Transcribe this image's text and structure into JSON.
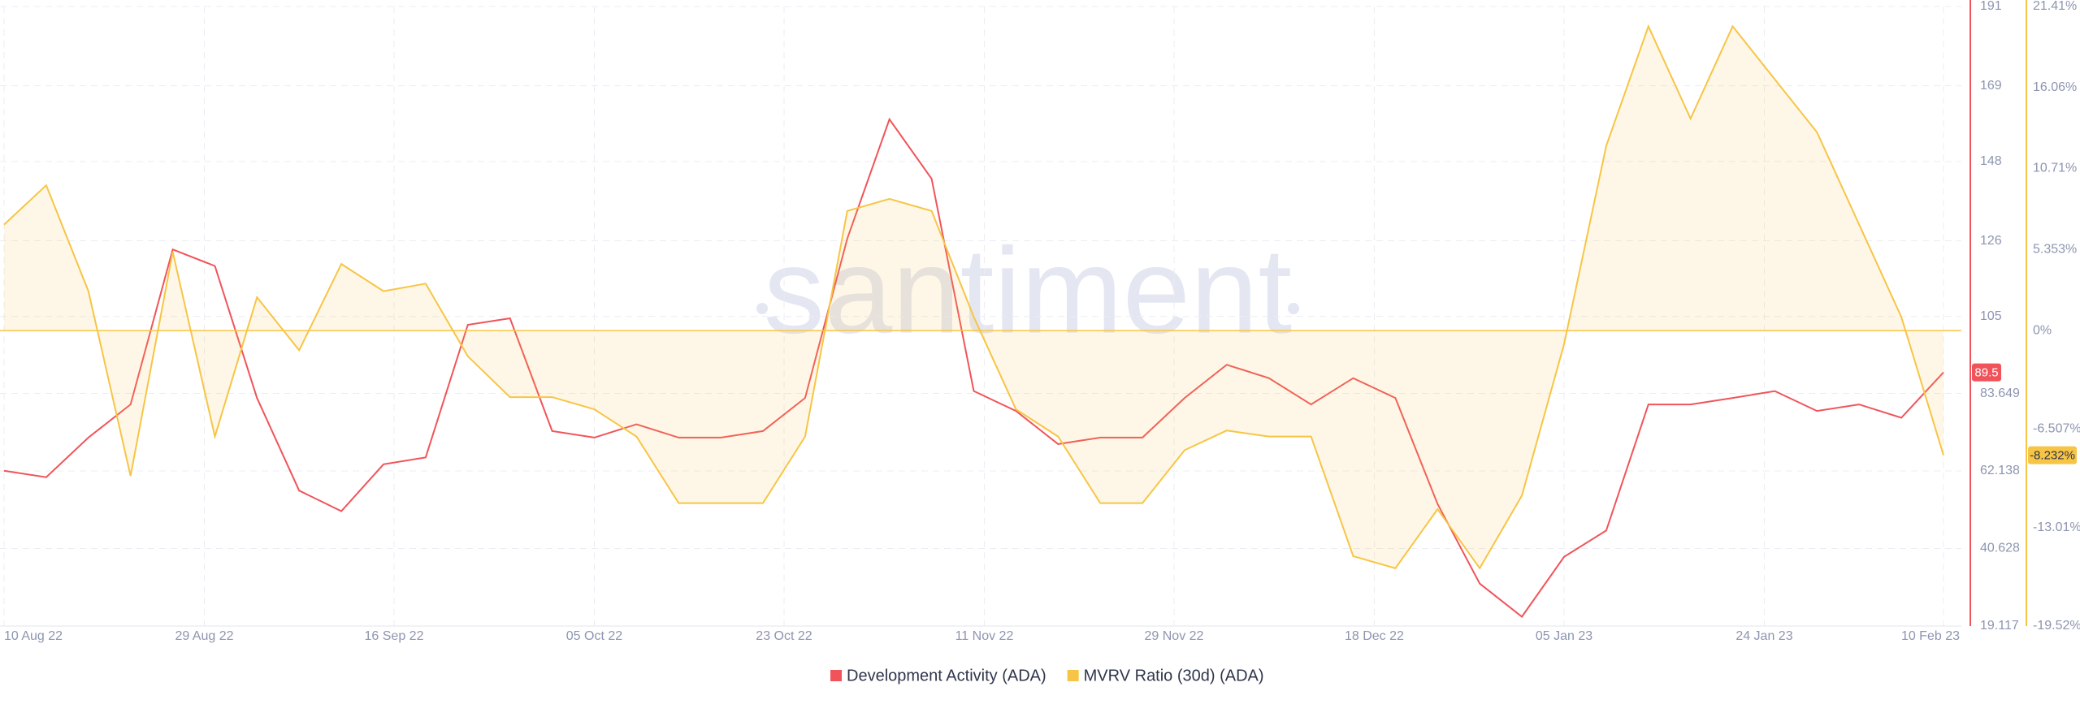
{
  "chart_data": {
    "type": "line",
    "watermark": "santiment",
    "x": [
      "2022-08-10",
      "2022-08-14",
      "2022-08-18",
      "2022-08-22",
      "2022-08-26",
      "2022-08-30",
      "2022-09-03",
      "2022-09-07",
      "2022-09-11",
      "2022-09-15",
      "2022-09-19",
      "2022-09-23",
      "2022-09-27",
      "2022-10-01",
      "2022-10-05",
      "2022-10-09",
      "2022-10-13",
      "2022-10-17",
      "2022-10-21",
      "2022-10-25",
      "2022-10-29",
      "2022-11-02",
      "2022-11-06",
      "2022-11-10",
      "2022-11-14",
      "2022-11-18",
      "2022-11-22",
      "2022-11-26",
      "2022-11-30",
      "2022-12-04",
      "2022-12-08",
      "2022-12-12",
      "2022-12-16",
      "2022-12-20",
      "2022-12-24",
      "2022-12-28",
      "2023-01-01",
      "2023-01-05",
      "2023-01-09",
      "2023-01-13",
      "2023-01-17",
      "2023-01-21",
      "2023-01-25",
      "2023-01-29",
      "2023-02-02",
      "2023-02-06",
      "2023-02-10"
    ],
    "xlim": [
      "2022-08-10",
      "2023-02-10"
    ],
    "xticks": [
      {
        "value": "2022-08-10",
        "label": "10 Aug 22"
      },
      {
        "value": "2022-08-29",
        "label": "29 Aug 22"
      },
      {
        "value": "2022-09-16",
        "label": "16 Sep 22"
      },
      {
        "value": "2022-10-05",
        "label": "05 Oct 22"
      },
      {
        "value": "2022-10-23",
        "label": "23 Oct 22"
      },
      {
        "value": "2022-11-11",
        "label": "11 Nov 22"
      },
      {
        "value": "2022-11-29",
        "label": "29 Nov 22"
      },
      {
        "value": "2022-12-18",
        "label": "18 Dec 22"
      },
      {
        "value": "2023-01-05",
        "label": "05 Jan 23"
      },
      {
        "value": "2023-01-24",
        "label": "24 Jan 23"
      },
      {
        "value": "2023-02-10",
        "label": "10 Feb 23"
      }
    ],
    "ylim": [
      19.117,
      191
    ],
    "yticks": [
      191,
      169,
      148,
      126,
      105,
      83.649,
      62.138,
      40.628,
      19.117
    ],
    "y2lim": [
      -19.52,
      21.41
    ],
    "y2ticks": [
      {
        "value": 21.41,
        "label": "21.41%"
      },
      {
        "value": 16.06,
        "label": "16.06%"
      },
      {
        "value": 10.71,
        "label": "10.71%"
      },
      {
        "value": 5.353,
        "label": "5.353%"
      },
      {
        "value": 0,
        "label": "0%"
      },
      {
        "value": -6.507,
        "label": "-6.507%"
      },
      {
        "value": -13.01,
        "label": "-13.01%"
      },
      {
        "value": -19.52,
        "label": "-19.52%"
      }
    ],
    "grid": true,
    "legend": "bottom",
    "series": [
      {
        "name": "Development Activity (ADA)",
        "color": "#f0545a",
        "axis": "y",
        "last_value_label": "89.5",
        "values": [
          62.2,
          60.4,
          71.4,
          80.6,
          123.6,
          119,
          82.4,
          56.7,
          51,
          64,
          65.9,
          102.7,
          104.5,
          73.2,
          71.4,
          75.1,
          71.4,
          71.4,
          73.2,
          82.4,
          126.6,
          159.7,
          143.2,
          84.3,
          78.8,
          69.6,
          71.4,
          71.4,
          82.4,
          91.6,
          87.9,
          80.6,
          87.9,
          82.4,
          53,
          30.9,
          21.7,
          38.3,
          45.6,
          80.6,
          80.6,
          82.4,
          84.3,
          78.8,
          80.6,
          76.9,
          89.5
        ]
      },
      {
        "name": "MVRV Ratio (30d) (ADA)",
        "color": "#f7c545",
        "axis": "y2",
        "last_value_label": "-8.232%",
        "values": [
          7.0,
          9.6,
          2.6,
          -9.6,
          5.2,
          -7.0,
          2.2,
          -1.3,
          4.4,
          2.6,
          3.1,
          -1.7,
          -4.4,
          -4.4,
          -5.2,
          -7.0,
          -11.4,
          -11.4,
          -11.4,
          -7.0,
          7.9,
          8.7,
          7.9,
          0.9,
          -5.2,
          -7.0,
          -11.4,
          -11.4,
          -7.9,
          -6.6,
          -7.0,
          -7.0,
          -14.9,
          -15.7,
          -11.8,
          -15.7,
          -10.9,
          -0.9,
          12.2,
          20.1,
          14.0,
          20.1,
          16.6,
          13.1,
          7.0,
          0.9,
          -8.232
        ]
      }
    ]
  }
}
